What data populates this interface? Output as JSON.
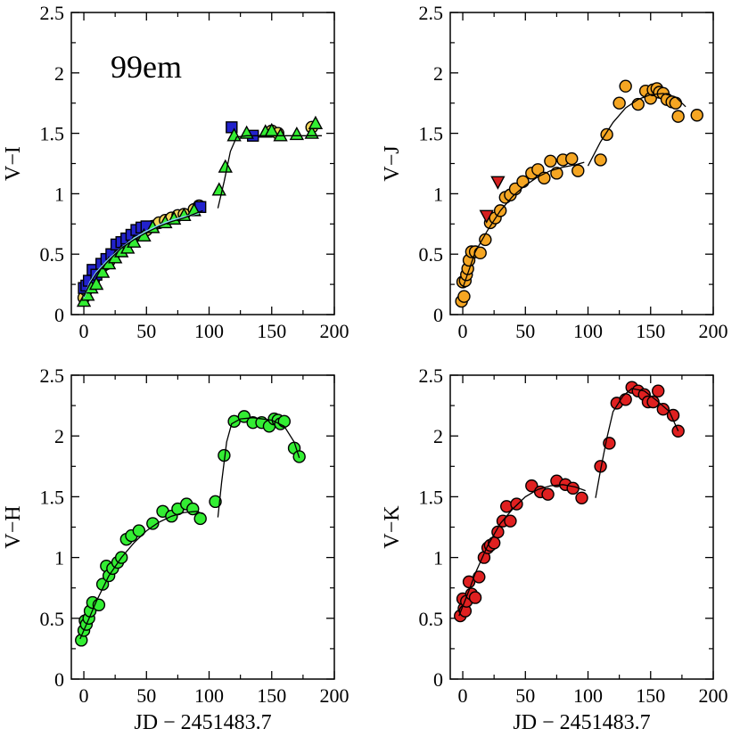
{
  "chart_data": [
    {
      "type": "scatter",
      "panel": "top-left",
      "ylabel": "V−I",
      "xlabel": "",
      "annotation": "99em",
      "xlim": [
        -10,
        200
      ],
      "ylim": [
        0,
        2.5
      ],
      "xticks": [
        "0",
        "50",
        "100",
        "150",
        "200"
      ],
      "yticks": [
        "0",
        "0.5",
        "1",
        "1.5",
        "2",
        "2.5"
      ],
      "series": [
        {
          "name": "circles",
          "marker": "circle",
          "color": "#f2d55a",
          "x": [
            0,
            2,
            4,
            6,
            8,
            10,
            12,
            15,
            18,
            20,
            24,
            28,
            32,
            36,
            40,
            45,
            50,
            55,
            60,
            65,
            70,
            75,
            80,
            88,
            92,
            150,
            155,
            182
          ],
          "y": [
            0.14,
            0.2,
            0.25,
            0.24,
            0.29,
            0.33,
            0.37,
            0.4,
            0.42,
            0.44,
            0.5,
            0.53,
            0.56,
            0.6,
            0.65,
            0.67,
            0.7,
            0.73,
            0.76,
            0.78,
            0.8,
            0.82,
            0.83,
            0.87,
            0.9,
            1.52,
            1.5,
            1.55
          ]
        },
        {
          "name": "squares",
          "marker": "square",
          "color": "#2222cc",
          "x": [
            0,
            2,
            4,
            7,
            10,
            14,
            18,
            22,
            26,
            30,
            34,
            38,
            42,
            46,
            50,
            93,
            118,
            135
          ],
          "y": [
            0.22,
            0.24,
            0.28,
            0.37,
            0.33,
            0.42,
            0.46,
            0.5,
            0.58,
            0.6,
            0.63,
            0.66,
            0.7,
            0.72,
            0.73,
            0.89,
            1.55,
            1.48
          ]
        },
        {
          "name": "triangles",
          "marker": "triangle",
          "color": "#33ee33",
          "x": [
            0,
            3,
            6,
            10,
            15,
            20,
            25,
            30,
            35,
            40,
            48,
            55,
            65,
            72,
            80,
            88,
            108,
            113,
            120,
            130,
            145,
            150,
            157,
            170,
            182,
            185
          ],
          "y": [
            0.11,
            0.16,
            0.22,
            0.25,
            0.35,
            0.42,
            0.47,
            0.52,
            0.55,
            0.6,
            0.65,
            0.72,
            0.76,
            0.79,
            0.82,
            0.86,
            1.03,
            1.22,
            1.48,
            1.5,
            1.51,
            1.52,
            1.48,
            1.49,
            1.5,
            1.58
          ]
        }
      ],
      "fits": [
        {
          "color": "#88d8f0",
          "x": [
            0,
            5,
            10,
            20,
            30,
            40,
            50,
            60,
            70,
            80,
            92
          ],
          "y": [
            0.14,
            0.27,
            0.35,
            0.46,
            0.55,
            0.63,
            0.69,
            0.74,
            0.78,
            0.81,
            0.84
          ]
        },
        {
          "color": "#000000",
          "x": [
            0,
            5,
            10,
            20,
            30,
            40,
            50,
            60,
            70,
            80,
            95
          ],
          "y": [
            0.15,
            0.26,
            0.34,
            0.45,
            0.55,
            0.62,
            0.68,
            0.73,
            0.77,
            0.8,
            0.86
          ]
        },
        {
          "color": "#000000",
          "x": [
            107,
            112,
            117,
            122,
            130,
            150,
            170,
            190
          ],
          "y": [
            0.88,
            1.1,
            1.35,
            1.47,
            1.48,
            1.48,
            1.48,
            1.48
          ]
        }
      ]
    },
    {
      "type": "scatter",
      "panel": "top-right",
      "ylabel": "V−J",
      "xlabel": "",
      "xlim": [
        -10,
        200
      ],
      "ylim": [
        0,
        2.5
      ],
      "xticks": [
        "0",
        "50",
        "100",
        "150",
        "200"
      ],
      "yticks": [
        "0",
        "0.5",
        "1",
        "1.5",
        "2",
        "2.5"
      ],
      "series": [
        {
          "name": "circles",
          "marker": "circle",
          "color": "#f5a623",
          "x": [
            -1,
            0,
            1,
            2,
            3,
            4,
            5,
            7,
            10,
            14,
            18,
            22,
            26,
            30,
            34,
            38,
            42,
            48,
            55,
            60,
            65,
            70,
            75,
            80,
            87,
            92,
            110,
            115,
            125,
            130,
            140,
            146,
            150,
            152,
            155,
            157,
            160,
            163,
            167,
            170,
            172,
            187
          ],
          "y": [
            0.11,
            0.27,
            0.15,
            0.28,
            0.33,
            0.38,
            0.45,
            0.52,
            0.52,
            0.51,
            0.62,
            0.76,
            0.8,
            0.86,
            0.97,
            0.99,
            1.04,
            1.1,
            1.17,
            1.2,
            1.13,
            1.27,
            1.17,
            1.28,
            1.29,
            1.19,
            1.28,
            1.49,
            1.75,
            1.89,
            1.74,
            1.85,
            1.79,
            1.86,
            1.87,
            1.84,
            1.83,
            1.78,
            1.76,
            1.75,
            1.64,
            1.65
          ]
        },
        {
          "name": "triangles-down",
          "marker": "triangle-down",
          "color": "#d42020",
          "x": [
            19,
            28
          ],
          "y": [
            0.82,
            1.1
          ]
        }
      ],
      "fits": [
        {
          "color": "#000000",
          "x": [
            0,
            5,
            10,
            20,
            30,
            40,
            50,
            60,
            70,
            80,
            90,
            97
          ],
          "y": [
            0.22,
            0.37,
            0.52,
            0.7,
            0.86,
            0.98,
            1.07,
            1.14,
            1.19,
            1.22,
            1.24,
            1.26
          ]
        },
        {
          "color": "#000000",
          "x": [
            100,
            110,
            120,
            130,
            140,
            150,
            160,
            170,
            178
          ],
          "y": [
            1.23,
            1.43,
            1.59,
            1.71,
            1.78,
            1.82,
            1.83,
            1.8,
            1.72
          ]
        }
      ]
    },
    {
      "type": "scatter",
      "panel": "bottom-left",
      "ylabel": "V−H",
      "xlabel": "JD − 2451483.7",
      "xlim": [
        -10,
        200
      ],
      "ylim": [
        0,
        2.5
      ],
      "xticks": [
        "0",
        "50",
        "100",
        "150",
        "200"
      ],
      "yticks": [
        "0",
        "0.5",
        "1",
        "1.5",
        "2",
        "2.5"
      ],
      "series": [
        {
          "name": "circles",
          "marker": "circle",
          "color": "#33ee33",
          "x": [
            -2,
            0,
            1,
            2,
            4,
            5,
            7,
            12,
            15,
            18,
            20,
            23,
            27,
            30,
            34,
            38,
            44,
            55,
            63,
            70,
            75,
            82,
            87,
            93,
            105,
            112,
            120,
            128,
            135,
            142,
            148,
            152,
            155,
            157,
            160,
            168,
            172
          ],
          "y": [
            0.32,
            0.4,
            0.48,
            0.45,
            0.5,
            0.56,
            0.63,
            0.61,
            0.78,
            0.93,
            0.85,
            0.91,
            0.96,
            1.0,
            1.15,
            1.18,
            1.22,
            1.28,
            1.38,
            1.34,
            1.4,
            1.44,
            1.4,
            1.32,
            1.46,
            1.84,
            2.12,
            2.16,
            2.11,
            2.11,
            2.08,
            2.14,
            2.13,
            2.1,
            2.12,
            1.9,
            1.83
          ]
        }
      ],
      "fits": [
        {
          "color": "#000000",
          "x": [
            -3,
            5,
            10,
            20,
            30,
            40,
            50,
            60,
            70,
            80,
            90,
            95
          ],
          "y": [
            0.33,
            0.52,
            0.64,
            0.85,
            1.0,
            1.12,
            1.22,
            1.29,
            1.34,
            1.37,
            1.38,
            1.36
          ]
        },
        {
          "color": "#000000",
          "x": [
            107,
            110,
            114,
            118,
            125,
            135,
            150,
            160,
            168,
            172
          ],
          "y": [
            1.33,
            1.62,
            1.95,
            2.1,
            2.14,
            2.15,
            2.13,
            2.08,
            1.95,
            1.82
          ]
        }
      ]
    },
    {
      "type": "scatter",
      "panel": "bottom-right",
      "ylabel": "V−K",
      "xlabel": "JD − 2451483.7",
      "xlim": [
        -10,
        200
      ],
      "ylim": [
        0,
        2.5
      ],
      "xticks": [
        "0",
        "50",
        "100",
        "150",
        "200"
      ],
      "yticks": [
        "0",
        "0.5",
        "1",
        "1.5",
        "2",
        "2.5"
      ],
      "series": [
        {
          "name": "circles",
          "marker": "circle",
          "color": "#e02020",
          "x": [
            -2,
            0,
            1,
            2,
            3,
            5,
            7,
            10,
            13,
            17,
            20,
            22,
            25,
            28,
            32,
            35,
            38,
            43,
            55,
            62,
            68,
            75,
            82,
            88,
            95,
            110,
            117,
            123,
            130,
            135,
            140,
            145,
            148,
            152,
            156,
            160,
            168,
            172
          ],
          "y": [
            0.52,
            0.66,
            0.58,
            0.56,
            0.64,
            0.8,
            0.7,
            0.67,
            0.84,
            1.0,
            1.08,
            1.1,
            1.12,
            1.21,
            1.3,
            1.42,
            1.3,
            1.44,
            1.59,
            1.54,
            1.52,
            1.63,
            1.6,
            1.57,
            1.49,
            1.75,
            1.94,
            2.27,
            2.3,
            2.4,
            2.37,
            2.34,
            2.28,
            2.28,
            2.37,
            2.22,
            2.17,
            2.04
          ]
        }
      ],
      "fits": [
        {
          "color": "#000000",
          "x": [
            -3,
            5,
            10,
            20,
            30,
            40,
            50,
            60,
            70,
            80,
            90,
            98
          ],
          "y": [
            0.52,
            0.73,
            0.87,
            1.1,
            1.28,
            1.4,
            1.5,
            1.56,
            1.59,
            1.6,
            1.58,
            1.55
          ]
        },
        {
          "color": "#000000",
          "x": [
            106,
            110,
            115,
            120,
            128,
            135,
            145,
            155,
            165,
            172
          ],
          "y": [
            1.49,
            1.72,
            1.98,
            2.2,
            2.33,
            2.39,
            2.37,
            2.29,
            2.2,
            2.04
          ]
        }
      ]
    }
  ]
}
